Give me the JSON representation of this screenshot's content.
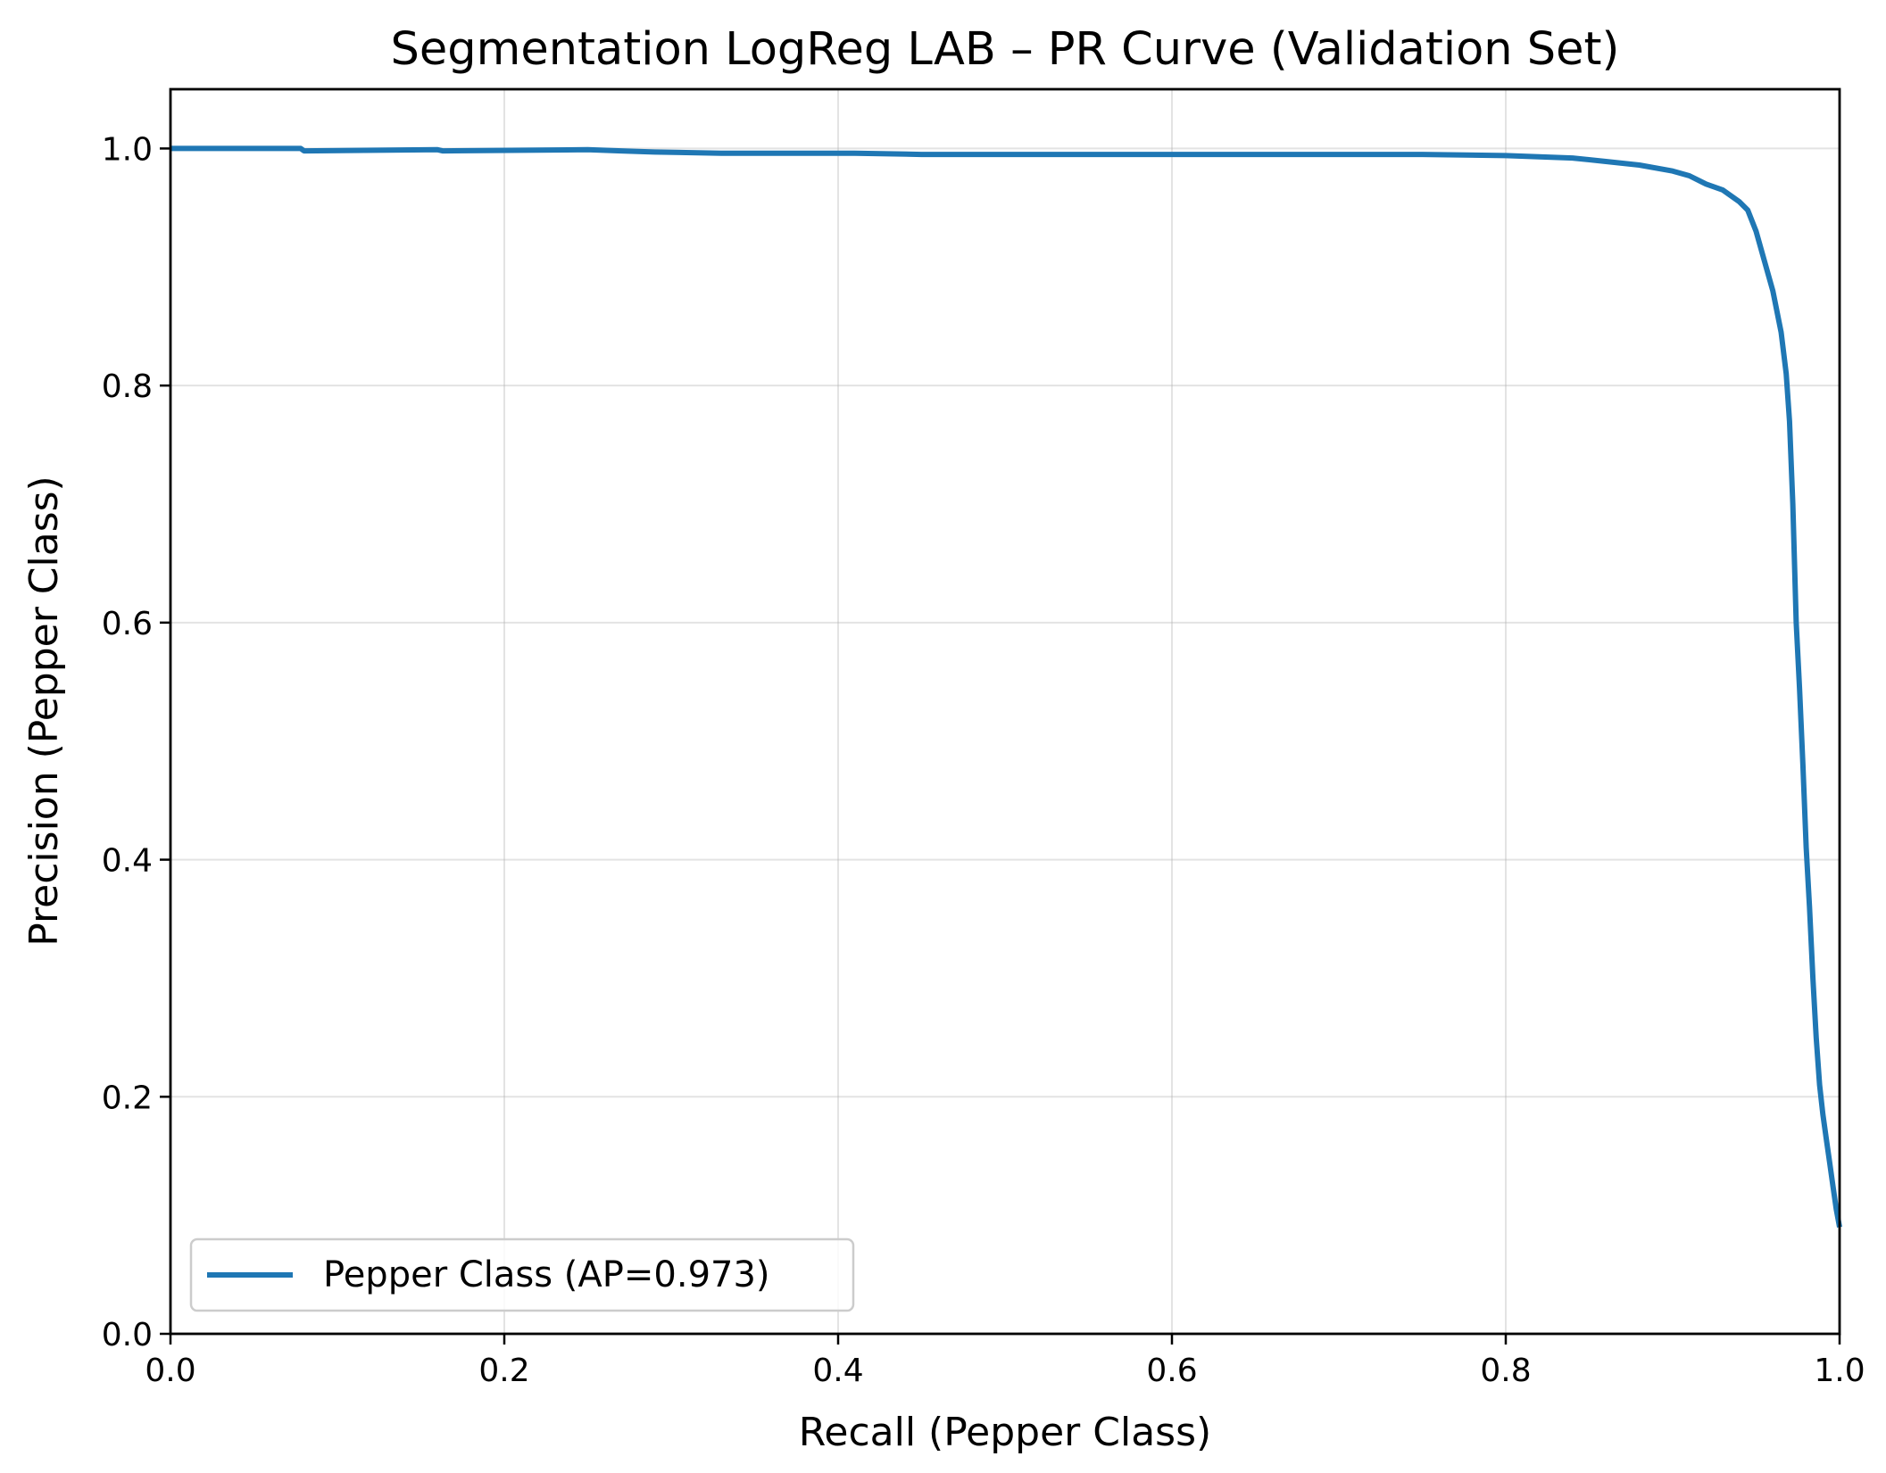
{
  "chart_data": {
    "type": "line",
    "title": "Segmentation LogReg LAB – PR Curve (Validation Set)",
    "xlabel": "Recall (Pepper Class)",
    "ylabel": "Precision (Pepper Class)",
    "xlim": [
      0.0,
      1.0
    ],
    "ylim": [
      0.0,
      1.05
    ],
    "xticks": [
      0.0,
      0.2,
      0.4,
      0.6,
      0.8,
      1.0
    ],
    "xtick_labels": [
      "0.0",
      "0.2",
      "0.4",
      "0.6",
      "0.8",
      "1.0"
    ],
    "yticks": [
      0.0,
      0.2,
      0.4,
      0.6,
      0.8,
      1.0
    ],
    "ytick_labels": [
      "0.0",
      "0.2",
      "0.4",
      "0.6",
      "0.8",
      "1.0"
    ],
    "grid": true,
    "legend_position": "lower-left",
    "series": [
      {
        "name": "Pepper Class (AP=0.973)",
        "color": "#1f77b4",
        "x": [
          0.0,
          0.078,
          0.08,
          0.16,
          0.163,
          0.25,
          0.27,
          0.29,
          0.33,
          0.41,
          0.45,
          0.6,
          0.75,
          0.8,
          0.84,
          0.86,
          0.88,
          0.9,
          0.91,
          0.92,
          0.93,
          0.94,
          0.945,
          0.95,
          0.955,
          0.96,
          0.965,
          0.968,
          0.97,
          0.972,
          0.974,
          0.976,
          0.978,
          0.98,
          0.982,
          0.984,
          0.986,
          0.988,
          0.99,
          0.992,
          0.994,
          0.996,
          0.998,
          1.0
        ],
        "y": [
          1.0,
          1.0,
          0.998,
          0.999,
          0.998,
          0.999,
          0.998,
          0.997,
          0.996,
          0.996,
          0.995,
          0.995,
          0.995,
          0.994,
          0.992,
          0.989,
          0.986,
          0.981,
          0.977,
          0.97,
          0.965,
          0.955,
          0.948,
          0.93,
          0.905,
          0.88,
          0.845,
          0.81,
          0.77,
          0.7,
          0.6,
          0.545,
          0.48,
          0.41,
          0.36,
          0.3,
          0.25,
          0.21,
          0.185,
          0.165,
          0.145,
          0.125,
          0.105,
          0.09
        ]
      }
    ]
  }
}
